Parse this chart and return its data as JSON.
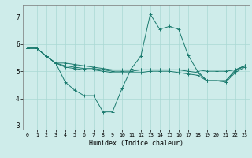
{
  "xlabel": "Humidex (Indice chaleur)",
  "background_color": "#ceecea",
  "grid_color": "#aad8d4",
  "line_color": "#1a7a6e",
  "xlim": [
    -0.5,
    23.5
  ],
  "ylim": [
    2.85,
    7.45
  ],
  "yticks": [
    3,
    4,
    5,
    6,
    7
  ],
  "xticks": [
    0,
    1,
    2,
    3,
    4,
    5,
    6,
    7,
    8,
    9,
    10,
    11,
    12,
    13,
    14,
    15,
    16,
    17,
    18,
    19,
    20,
    21,
    22,
    23
  ],
  "lines": [
    [
      5.85,
      5.85,
      5.55,
      5.3,
      4.6,
      4.3,
      4.1,
      4.1,
      3.5,
      3.5,
      4.35,
      5.1,
      5.55,
      7.1,
      6.55,
      6.65,
      6.55,
      5.6,
      5.0,
      4.65,
      4.65,
      4.65,
      5.05,
      5.2
    ],
    [
      5.85,
      5.85,
      5.55,
      5.3,
      5.3,
      5.25,
      5.2,
      5.15,
      5.1,
      5.05,
      5.05,
      5.05,
      5.05,
      5.05,
      5.05,
      5.05,
      5.05,
      5.05,
      5.05,
      5.0,
      5.0,
      5.0,
      5.05,
      5.2
    ],
    [
      5.85,
      5.85,
      5.55,
      5.3,
      5.2,
      5.15,
      5.1,
      5.1,
      5.05,
      5.0,
      5.0,
      5.0,
      5.05,
      5.05,
      5.05,
      5.05,
      5.05,
      5.0,
      4.95,
      4.65,
      4.65,
      4.65,
      5.0,
      5.2
    ],
    [
      5.85,
      5.85,
      5.55,
      5.3,
      5.15,
      5.1,
      5.05,
      5.05,
      5.0,
      4.95,
      4.95,
      4.95,
      4.95,
      5.0,
      5.0,
      5.0,
      4.95,
      4.9,
      4.85,
      4.65,
      4.65,
      4.6,
      4.95,
      5.15
    ]
  ]
}
